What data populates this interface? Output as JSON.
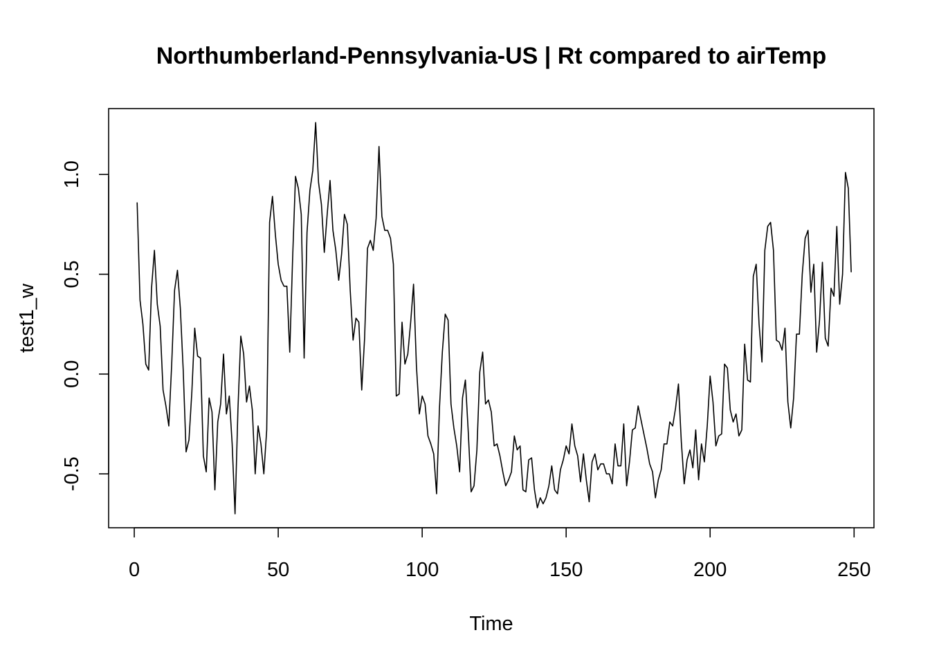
{
  "chart_data": {
    "type": "line",
    "title": "Northumberland-Pennsylvania-US | Rt compared to airTemp",
    "xlabel": "Time",
    "ylabel": "test1_w",
    "xlim": [
      -8.9,
      256.9
    ],
    "ylim": [
      -0.77,
      1.33
    ],
    "x_ticks": [
      0,
      50,
      100,
      150,
      200,
      250
    ],
    "y_ticks": [
      -0.5,
      0.0,
      0.5,
      1.0
    ],
    "x_tick_labels": [
      "0",
      "50",
      "100",
      "150",
      "200",
      "250"
    ],
    "y_tick_labels": [
      "-0.5",
      "0.0",
      "0.5",
      "1.0"
    ],
    "grid": false,
    "legend": "none",
    "x_start": 1,
    "series": [
      {
        "color": "#000000",
        "values": [
          0.86,
          0.37,
          0.25,
          0.05,
          0.02,
          0.43,
          0.62,
          0.35,
          0.24,
          -0.08,
          -0.16,
          -0.26,
          0.05,
          0.42,
          0.52,
          0.33,
          0.02,
          -0.39,
          -0.33,
          -0.09,
          0.23,
          0.09,
          0.08,
          -0.41,
          -0.49,
          -0.12,
          -0.19,
          -0.58,
          -0.24,
          -0.15,
          0.1,
          -0.2,
          -0.11,
          -0.35,
          -0.7,
          -0.18,
          0.19,
          0.1,
          -0.14,
          -0.06,
          -0.18,
          -0.5,
          -0.26,
          -0.35,
          -0.5,
          -0.28,
          0.76,
          0.89,
          0.7,
          0.55,
          0.47,
          0.44,
          0.44,
          0.11,
          0.58,
          0.99,
          0.93,
          0.8,
          0.08,
          0.71,
          0.92,
          1.02,
          1.26,
          0.96,
          0.85,
          0.61,
          0.8,
          0.97,
          0.72,
          0.62,
          0.47,
          0.6,
          0.8,
          0.75,
          0.42,
          0.17,
          0.28,
          0.26,
          -0.08,
          0.18,
          0.63,
          0.67,
          0.62,
          0.78,
          1.14,
          0.79,
          0.72,
          0.72,
          0.68,
          0.55,
          -0.11,
          -0.1,
          0.26,
          0.05,
          0.1,
          0.26,
          0.45,
          0.04,
          -0.2,
          -0.11,
          -0.15,
          -0.31,
          -0.35,
          -0.4,
          -0.6,
          -0.17,
          0.11,
          0.3,
          0.27,
          -0.15,
          -0.27,
          -0.36,
          -0.49,
          -0.12,
          -0.03,
          -0.29,
          -0.59,
          -0.56,
          -0.38,
          0.01,
          0.11,
          -0.15,
          -0.13,
          -0.19,
          -0.36,
          -0.35,
          -0.41,
          -0.49,
          -0.56,
          -0.53,
          -0.49,
          -0.31,
          -0.38,
          -0.36,
          -0.58,
          -0.59,
          -0.43,
          -0.42,
          -0.58,
          -0.67,
          -0.62,
          -0.65,
          -0.62,
          -0.56,
          -0.46,
          -0.58,
          -0.6,
          -0.48,
          -0.43,
          -0.36,
          -0.4,
          -0.25,
          -0.36,
          -0.41,
          -0.54,
          -0.4,
          -0.53,
          -0.64,
          -0.44,
          -0.4,
          -0.48,
          -0.45,
          -0.45,
          -0.5,
          -0.5,
          -0.55,
          -0.35,
          -0.46,
          -0.46,
          -0.25,
          -0.56,
          -0.44,
          -0.28,
          -0.27,
          -0.16,
          -0.23,
          -0.3,
          -0.37,
          -0.45,
          -0.49,
          -0.62,
          -0.53,
          -0.48,
          -0.35,
          -0.35,
          -0.24,
          -0.26,
          -0.17,
          -0.05,
          -0.34,
          -0.55,
          -0.43,
          -0.38,
          -0.47,
          -0.28,
          -0.53,
          -0.35,
          -0.44,
          -0.26,
          -0.01,
          -0.14,
          -0.36,
          -0.31,
          -0.3,
          0.05,
          0.03,
          -0.18,
          -0.24,
          -0.2,
          -0.31,
          -0.28,
          0.15,
          -0.03,
          -0.04,
          0.49,
          0.55,
          0.25,
          0.06,
          0.62,
          0.74,
          0.76,
          0.62,
          0.17,
          0.16,
          0.12,
          0.23,
          -0.14,
          -0.27,
          -0.12,
          0.2,
          0.2,
          0.5,
          0.68,
          0.72,
          0.41,
          0.55,
          0.11,
          0.27,
          0.56,
          0.18,
          0.14,
          0.43,
          0.39,
          0.74,
          0.35,
          0.5,
          1.01,
          0.93,
          0.51
        ]
      }
    ]
  }
}
